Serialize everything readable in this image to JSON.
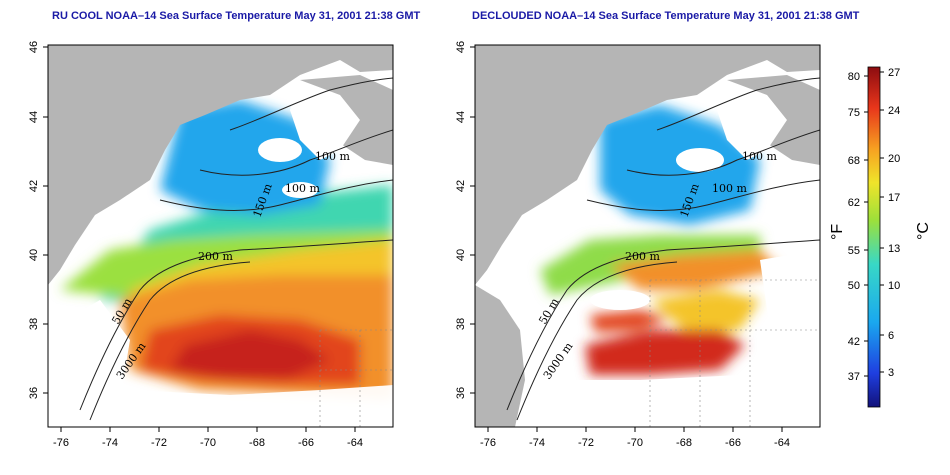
{
  "maps": [
    {
      "title": "RU COOL NOAA–14 Sea Surface Temperature May 31, 2001 21:38 GMT",
      "contour_labels": [
        "100 m",
        "100 m",
        "150 m",
        "200 m",
        "50 m",
        "3000 m"
      ]
    },
    {
      "title": "DECLOUDED NOAA–14 Sea Surface Temperature May 31, 2001 21:38 GMT",
      "contour_labels": [
        "100 m",
        "100 m",
        "150 m",
        "200 m",
        "50 m",
        "3000 m"
      ]
    }
  ],
  "axes": {
    "lon_ticks": [
      "-76",
      "-74",
      "-72",
      "-70",
      "-68",
      "-66",
      "-64"
    ],
    "lat_ticks": [
      "46",
      "44",
      "42",
      "40",
      "38",
      "36"
    ]
  },
  "colorbar": {
    "fahrenheit_ticks": [
      "80",
      "75",
      "68",
      "62",
      "55",
      "50",
      "42",
      "37"
    ],
    "celsius_ticks": [
      "27",
      "24",
      "20",
      "17",
      "13",
      "10",
      "6",
      "3"
    ],
    "fahrenheit_unit": "°F",
    "celsius_unit": "°C"
  },
  "colors": {
    "land": "#b5b5b5",
    "cloud": "#ffffff",
    "title": "#1a1aa6"
  }
}
